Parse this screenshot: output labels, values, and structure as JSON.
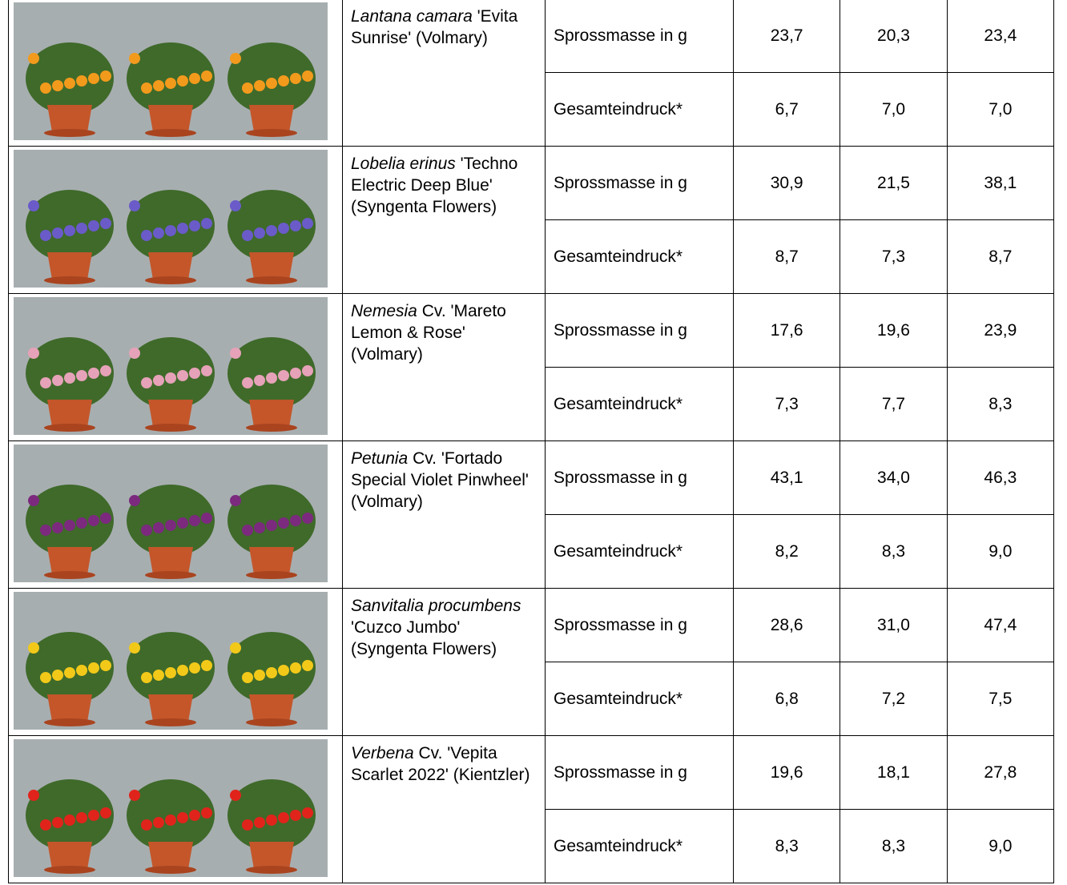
{
  "table": {
    "rows": [
      {
        "name_italic": "Lantana camara",
        "name_rest": "'Evita Sunrise' (Volmary)",
        "measures": [
          {
            "label": "Sprossmasse in g",
            "values": [
              "23,7",
              "20,3",
              "23,4"
            ]
          },
          {
            "label": "Gesamteindruck*",
            "values": [
              "6,7",
              "7,0",
              "7,0"
            ]
          }
        ]
      },
      {
        "name_italic": "Lobelia erinus",
        "name_rest": "'Techno Electric Deep Blue' (Syngenta Flowers)",
        "measures": [
          {
            "label": "Sprossmasse in g",
            "values": [
              "30,9",
              "21,5",
              "38,1"
            ]
          },
          {
            "label": "Gesamteindruck*",
            "values": [
              "8,7",
              "7,3",
              "8,7"
            ]
          }
        ]
      },
      {
        "name_italic": "Nemesia",
        "name_rest": "Cv. 'Mareto Lemon & Rose' (Volmary)",
        "measures": [
          {
            "label": "Sprossmasse in g",
            "values": [
              "17,6",
              "19,6",
              "23,9"
            ]
          },
          {
            "label": "Gesamteindruck*",
            "values": [
              "7,3",
              "7,7",
              "8,3"
            ]
          }
        ]
      },
      {
        "name_italic": "Petunia",
        "name_rest": "Cv. 'Fortado Special Violet Pinwheel' (Volmary)",
        "measures": [
          {
            "label": "Sprossmasse in g",
            "values": [
              "43,1",
              "34,0",
              "46,3"
            ]
          },
          {
            "label": "Gesamteindruck*",
            "values": [
              "8,2",
              "8,3",
              "9,0"
            ]
          }
        ]
      },
      {
        "name_italic": "Sanvitalia procumbens",
        "name_rest": "'Cuzco Jumbo' (Syngenta Flowers)",
        "measures": [
          {
            "label": "Sprossmasse in g",
            "values": [
              "28,6",
              "31,0",
              "47,4"
            ]
          },
          {
            "label": "Gesamteindruck*",
            "values": [
              "6,8",
              "7,2",
              "7,5"
            ]
          }
        ]
      },
      {
        "name_italic": "Verbena",
        "name_rest": "Cv. 'Vepita Scarlet 2022' (Kientzler)",
        "measures": [
          {
            "label": "Sprossmasse in g",
            "values": [
              "19,6",
              "18,1",
              "27,8"
            ]
          },
          {
            "label": "Gesamteindruck*",
            "values": [
              "8,3",
              "8,3",
              "9,0"
            ]
          }
        ]
      }
    ]
  }
}
